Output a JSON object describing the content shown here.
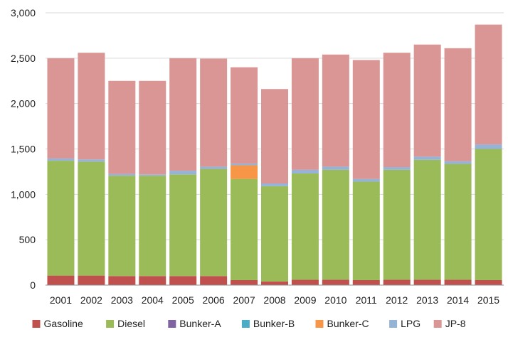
{
  "chart_data": {
    "type": "bar",
    "stacked": true,
    "title": "",
    "xlabel": "",
    "ylabel": "",
    "ylim": [
      0,
      3000
    ],
    "yticks": [
      0,
      500,
      1000,
      1500,
      2000,
      2500,
      3000
    ],
    "ytick_labels": [
      "0",
      "500",
      "1,000",
      "1,500",
      "2,000",
      "2,500",
      "3,000"
    ],
    "grid": "horizontal",
    "legend_position": "bottom",
    "categories": [
      "2001",
      "2002",
      "2003",
      "2004",
      "2005",
      "2006",
      "2007",
      "2008",
      "2009",
      "2010",
      "2011",
      "2012",
      "2013",
      "2014",
      "2015"
    ],
    "series": [
      {
        "name": "Gasoline",
        "color": "#c0504d",
        "values": [
          105,
          105,
          100,
          100,
          100,
          100,
          55,
          40,
          60,
          60,
          55,
          60,
          60,
          60,
          55
        ]
      },
      {
        "name": "Diesel",
        "color": "#9bbb59",
        "values": [
          1265,
          1255,
          1105,
          1105,
          1120,
          1180,
          1115,
          1050,
          1170,
          1210,
          1085,
          1210,
          1320,
          1275,
          1445
        ]
      },
      {
        "name": "Bunker-A",
        "color": "#8064a2",
        "values": [
          0,
          0,
          0,
          0,
          0,
          0,
          0,
          0,
          0,
          0,
          0,
          0,
          0,
          0,
          0
        ]
      },
      {
        "name": "Bunker-B",
        "color": "#4bacc6",
        "values": [
          0,
          0,
          0,
          0,
          0,
          0,
          0,
          0,
          0,
          0,
          0,
          0,
          0,
          0,
          0
        ]
      },
      {
        "name": "Bunker-C",
        "color": "#f79646",
        "values": [
          0,
          0,
          0,
          0,
          0,
          0,
          150,
          0,
          0,
          0,
          0,
          0,
          0,
          0,
          0
        ]
      },
      {
        "name": "LPG",
        "color": "#95b3d7",
        "values": [
          25,
          25,
          20,
          15,
          40,
          25,
          20,
          30,
          40,
          35,
          30,
          30,
          35,
          30,
          50
        ]
      },
      {
        "name": "JP-8",
        "color": "#d99694",
        "values": [
          1105,
          1175,
          1025,
          1030,
          1240,
          1190,
          1060,
          1040,
          1230,
          1235,
          1310,
          1260,
          1235,
          1245,
          1320
        ]
      }
    ]
  }
}
